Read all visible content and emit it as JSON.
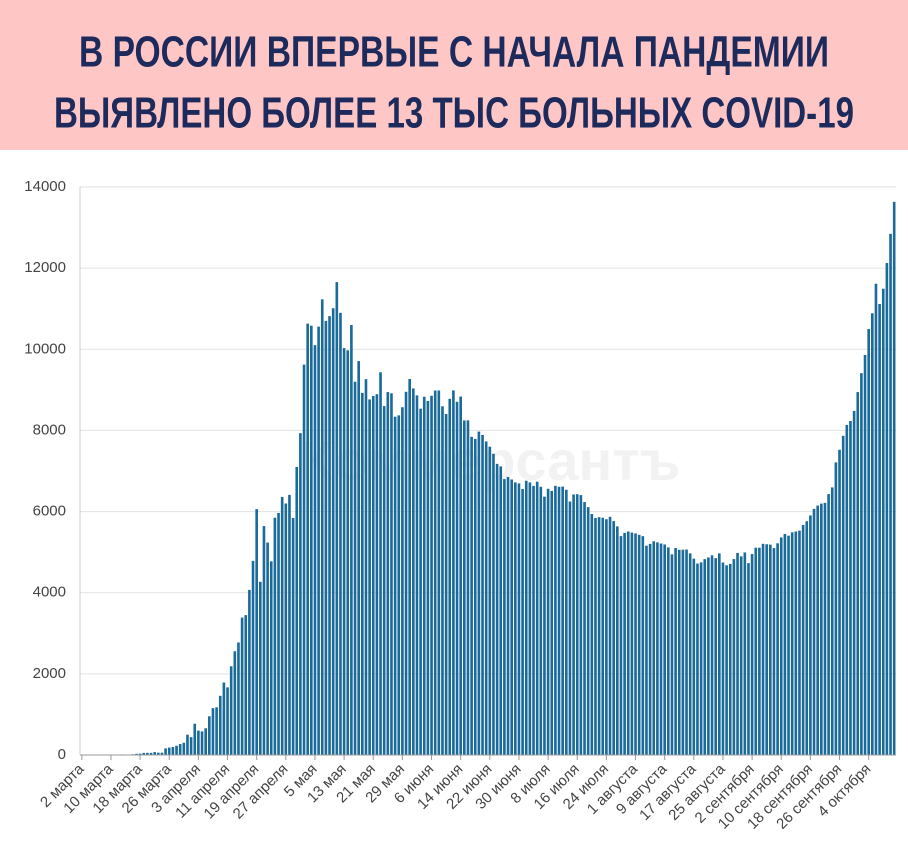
{
  "chart_data": {
    "type": "bar",
    "title_lines": [
      "В РОССИИ ВПЕРВЫЕ С НАЧАЛА ПАНДЕМИИ",
      "ВЫЯВЛЕНО БОЛЕЕ 13 ТЫС БОЛЬНЫХ COVID-19"
    ],
    "watermark": "Коммерсантъ",
    "color": "#1a6a9a",
    "grid": true,
    "ylim": [
      0,
      14000
    ],
    "yticks": [
      0,
      2000,
      4000,
      6000,
      8000,
      10000,
      12000,
      14000
    ],
    "categories": [
      "2 марта",
      null,
      null,
      null,
      null,
      null,
      null,
      null,
      "10 марта",
      null,
      null,
      null,
      null,
      null,
      null,
      null,
      "18 марта",
      null,
      null,
      null,
      null,
      null,
      null,
      null,
      "26 марта",
      null,
      null,
      null,
      null,
      null,
      null,
      null,
      "3 апреля",
      null,
      null,
      null,
      null,
      null,
      null,
      null,
      "11 апреля",
      null,
      null,
      null,
      null,
      null,
      null,
      null,
      "19 апреля",
      null,
      null,
      null,
      null,
      null,
      null,
      null,
      "27 апреля",
      null,
      null,
      null,
      null,
      null,
      null,
      null,
      "5 мая",
      null,
      null,
      null,
      null,
      null,
      null,
      null,
      "13 мая",
      null,
      null,
      null,
      null,
      null,
      null,
      null,
      "21 мая",
      null,
      null,
      null,
      null,
      null,
      null,
      null,
      "29 мая",
      null,
      null,
      null,
      null,
      null,
      null,
      null,
      "6 июня",
      null,
      null,
      null,
      null,
      null,
      null,
      null,
      "14 июня",
      null,
      null,
      null,
      null,
      null,
      null,
      null,
      "22 июня",
      null,
      null,
      null,
      null,
      null,
      null,
      null,
      "30 июня",
      null,
      null,
      null,
      null,
      null,
      null,
      null,
      "8 июля",
      null,
      null,
      null,
      null,
      null,
      null,
      null,
      "16 июля",
      null,
      null,
      null,
      null,
      null,
      null,
      null,
      "24 июля",
      null,
      null,
      null,
      null,
      null,
      null,
      null,
      "1 августа",
      null,
      null,
      null,
      null,
      null,
      null,
      null,
      "9 августа",
      null,
      null,
      null,
      null,
      null,
      null,
      null,
      "17 августа",
      null,
      null,
      null,
      null,
      null,
      null,
      null,
      "25 августа",
      null,
      null,
      null,
      null,
      null,
      null,
      null,
      "2 сентября",
      null,
      null,
      null,
      null,
      null,
      null,
      null,
      "10 сентября",
      null,
      null,
      null,
      null,
      null,
      null,
      null,
      "18 сентября",
      null,
      null,
      null,
      null,
      null,
      null,
      null,
      "26 сентября",
      null,
      null,
      null,
      null,
      null,
      null,
      null,
      "4 октября",
      null,
      null,
      null,
      null,
      null,
      null,
      null
    ],
    "values": [
      0,
      0,
      0,
      1,
      6,
      0,
      3,
      0,
      3,
      8,
      6,
      14,
      11,
      4,
      18,
      30,
      33,
      52,
      54,
      53,
      71,
      57,
      57,
      163,
      182,
      196,
      228,
      270,
      302,
      500,
      440,
      771,
      601,
      582,
      658,
      954,
      1154,
      1175,
      1459,
      1786,
      1667,
      2186,
      2558,
      2774,
      3388,
      3448,
      4070,
      4785,
      6060,
      4268,
      5642,
      5236,
      4774,
      5849,
      5966,
      6361,
      6198,
      6411,
      5841,
      7099,
      7933,
      9623,
      10633,
      10581,
      10102,
      10559,
      11231,
      10699,
      10817,
      11012,
      11656,
      10899,
      10028,
      9974,
      10598,
      9200,
      9709,
      8926,
      9263,
      8764,
      8849,
      8894,
      9434,
      8599,
      8946,
      8915,
      8338,
      8371,
      8572,
      8952,
      9268,
      9035,
      8863,
      8536,
      8831,
      8726,
      8855,
      8984,
      8985,
      8595,
      8404,
      8779,
      8987,
      8706,
      8835,
      8246,
      8248,
      7843,
      7790,
      7972,
      7889,
      7728,
      7600,
      7425,
      7176,
      7113,
      6800,
      6852,
      6791,
      6719,
      6693,
      6556,
      6760,
      6718,
      6632,
      6736,
      6611,
      6368,
      6562,
      6509,
      6635,
      6611,
      6615,
      6537,
      6248,
      6422,
      6428,
      6406,
      6234,
      6109,
      5940,
      5842,
      5862,
      5848,
      5811,
      5871,
      5765,
      5635,
      5395,
      5475,
      5509,
      5482,
      5462,
      5427,
      5394,
      5159,
      5204,
      5267,
      5241,
      5212,
      5189,
      5118,
      4945,
      5102,
      5057,
      5061,
      5065,
      4969,
      4839,
      4718,
      4748,
      4828,
      4870,
      4921,
      4852,
      4969,
      4744,
      4676,
      4711,
      4829,
      4980,
      4897,
      4993,
      4729,
      4952,
      5110,
      5110,
      5205,
      5195,
      5185,
      5099,
      5218,
      5363,
      5449,
      5406,
      5488,
      5509,
      5529,
      5670,
      5762,
      5905,
      6065,
      6148,
      6196,
      6215,
      6431,
      6595,
      7212,
      7523,
      7867,
      8135,
      8232,
      8481,
      8945,
      9412,
      9859,
      10499,
      10888,
      11615,
      11115,
      11493,
      12126,
      12846,
      13634
    ]
  }
}
